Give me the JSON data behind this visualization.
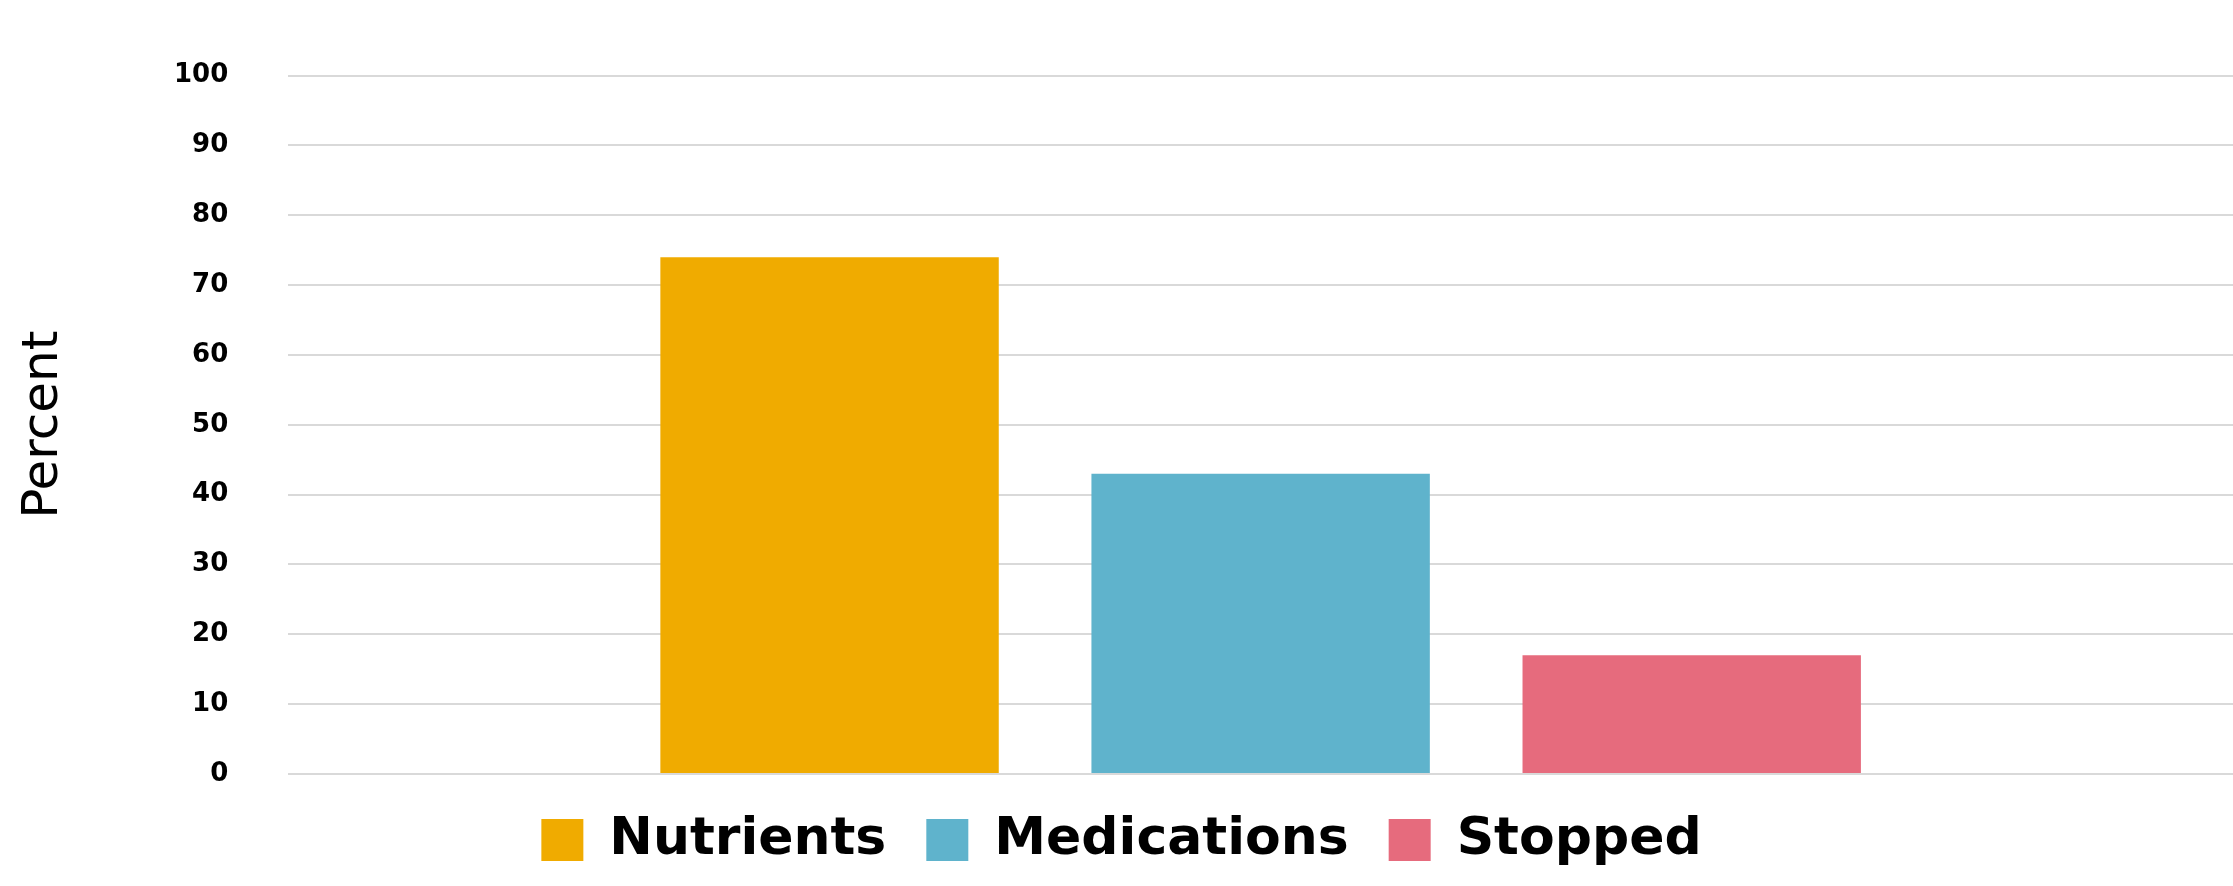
{
  "chart_data": {
    "type": "bar",
    "ylabel": "Percent",
    "categories": [
      null
    ],
    "series": [
      {
        "name": "Nutrients",
        "color": "#f0ab00",
        "values": [
          74
        ]
      },
      {
        "name": "Medications",
        "color": "#5fb3cc",
        "values": [
          43
        ]
      },
      {
        "name": "Stopped",
        "color": "#e66b7d",
        "values": [
          17
        ]
      }
    ],
    "ylim": [
      0,
      100
    ],
    "yticks": [
      0,
      10,
      20,
      30,
      40,
      50,
      60,
      70,
      80,
      90,
      100
    ],
    "grid": "y",
    "legend": "bottom",
    "tick_labels": "y"
  }
}
